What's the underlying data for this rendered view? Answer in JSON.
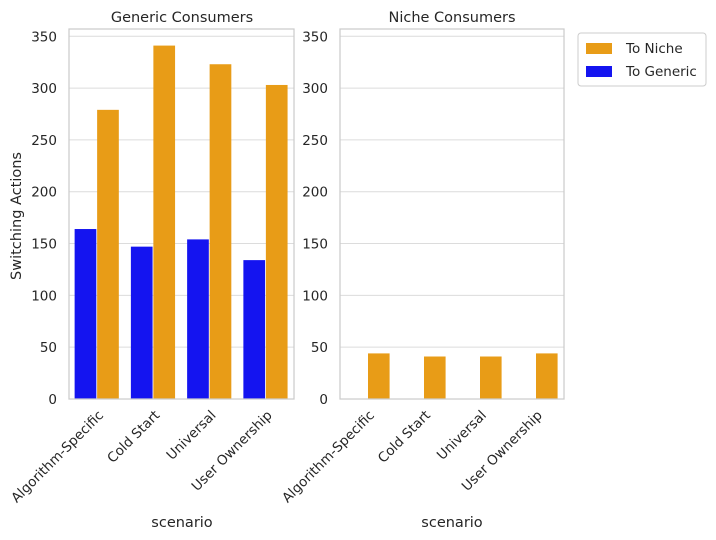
{
  "chart_data": [
    {
      "type": "bar",
      "title": "Generic Consumers",
      "xlabel": "scenario",
      "ylabel": "Switching Actions",
      "ylim": [
        0,
        357
      ],
      "yticks": [
        0,
        50,
        100,
        150,
        200,
        250,
        300,
        350
      ],
      "categories": [
        "Algorithm-Specific",
        "Cold Start",
        "Universal",
        "User Ownership"
      ],
      "series": [
        {
          "name": "To Generic",
          "color": "#1414f0",
          "values": [
            164,
            147,
            154,
            134
          ]
        },
        {
          "name": "To Niche",
          "color": "#e89c17",
          "values": [
            279,
            341,
            323,
            303
          ]
        }
      ]
    },
    {
      "type": "bar",
      "title": "Niche Consumers",
      "xlabel": "scenario",
      "ylabel": "",
      "ylim": [
        0,
        357
      ],
      "yticks": [
        0,
        50,
        100,
        150,
        200,
        250,
        300,
        350
      ],
      "categories": [
        "Algorithm-Specific",
        "Cold Start",
        "Universal",
        "User Ownership"
      ],
      "series": [
        {
          "name": "To Generic",
          "color": "#1414f0",
          "values": [
            0,
            0,
            0,
            0
          ]
        },
        {
          "name": "To Niche",
          "color": "#e89c17",
          "values": [
            44,
            41,
            41,
            44
          ]
        }
      ]
    }
  ],
  "legend": {
    "position": "outside-top-right",
    "entries": [
      {
        "label": "To Niche",
        "color": "#e89c17"
      },
      {
        "label": "To Generic",
        "color": "#1414f0"
      }
    ]
  }
}
